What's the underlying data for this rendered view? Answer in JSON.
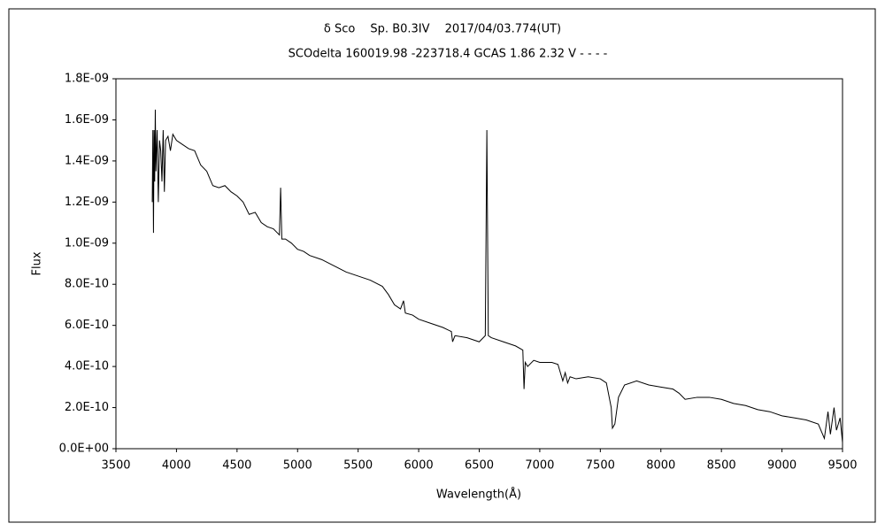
{
  "chart_data": {
    "type": "line",
    "title": "δ Sco　 Sp. B0.3IV　 2017/04/03.774(UT)",
    "subtitle": "SCOdelta 160019.98 -223718.4 GCAS 1.86 2.32 V - - - -",
    "x_label": "Wavelength(Å)",
    "y_label": "Flux",
    "color": "#000000",
    "x": [
      3800,
      3805,
      3810,
      3815,
      3820,
      3825,
      3830,
      3840,
      3850,
      3860,
      3870,
      3880,
      3890,
      3900,
      3910,
      3930,
      3950,
      3970,
      4000,
      4050,
      4100,
      4150,
      4200,
      4250,
      4300,
      4350,
      4400,
      4450,
      4500,
      4550,
      4600,
      4650,
      4700,
      4750,
      4800,
      4850,
      4860,
      4870,
      4900,
      4950,
      5000,
      5050,
      5100,
      5200,
      5300,
      5400,
      5500,
      5600,
      5700,
      5750,
      5800,
      5850,
      5875,
      5890,
      5950,
      6000,
      6100,
      6200,
      6270,
      6280,
      6300,
      6400,
      6500,
      6550,
      6563,
      6575,
      6600,
      6700,
      6800,
      6860,
      6870,
      6880,
      6900,
      6950,
      7000,
      7100,
      7150,
      7190,
      7210,
      7230,
      7250,
      7300,
      7400,
      7500,
      7550,
      7590,
      7600,
      7620,
      7650,
      7700,
      7800,
      7900,
      8000,
      8100,
      8150,
      8200,
      8300,
      8400,
      8500,
      8600,
      8700,
      8800,
      8900,
      9000,
      9100,
      9200,
      9300,
      9350,
      9380,
      9400,
      9430,
      9450,
      9480,
      9500
    ],
    "values": [
      1.2e-09,
      1.55e-09,
      1.05e-09,
      1.55e-09,
      1.3e-09,
      1.65e-09,
      1.35e-09,
      1.55e-09,
      1.2e-09,
      1.5e-09,
      1.45e-09,
      1.3e-09,
      1.55e-09,
      1.25e-09,
      1.5e-09,
      1.52e-09,
      1.45e-09,
      1.53e-09,
      1.5e-09,
      1.48e-09,
      1.46e-09,
      1.45e-09,
      1.38e-09,
      1.35e-09,
      1.28e-09,
      1.27e-09,
      1.28e-09,
      1.25e-09,
      1.23e-09,
      1.2e-09,
      1.14e-09,
      1.15e-09,
      1.1e-09,
      1.08e-09,
      1.07e-09,
      1.04e-09,
      1.27e-09,
      1.02e-09,
      1.02e-09,
      1e-09,
      9.7e-10,
      9.6e-10,
      9.4e-10,
      9.2e-10,
      8.9e-10,
      8.6e-10,
      8.4e-10,
      8.2e-10,
      7.9e-10,
      7.5e-10,
      7e-10,
      6.8e-10,
      7.2e-10,
      6.6e-10,
      6.5e-10,
      6.3e-10,
      6.1e-10,
      5.9e-10,
      5.7e-10,
      5.2e-10,
      5.5e-10,
      5.4e-10,
      5.2e-10,
      5.5e-10,
      1.55e-09,
      5.5e-10,
      5.4e-10,
      5.2e-10,
      5e-10,
      4.8e-10,
      2.9e-10,
      4.2e-10,
      4e-10,
      4.3e-10,
      4.2e-10,
      4.2e-10,
      4.1e-10,
      3.3e-10,
      3.7e-10,
      3.2e-10,
      3.5e-10,
      3.4e-10,
      3.5e-10,
      3.4e-10,
      3.2e-10,
      2e-10,
      1e-10,
      1.2e-10,
      2.5e-10,
      3.1e-10,
      3.3e-10,
      3.1e-10,
      3e-10,
      2.9e-10,
      2.7e-10,
      2.4e-10,
      2.5e-10,
      2.5e-10,
      2.4e-10,
      2.2e-10,
      2.1e-10,
      1.9e-10,
      1.8e-10,
      1.6e-10,
      1.5e-10,
      1.4e-10,
      1.2e-10,
      5e-11,
      1.8e-10,
      7e-11,
      2e-10,
      9e-11,
      1.5e-10,
      3e-11
    ],
    "xlim": [
      3500,
      9500
    ],
    "xticks": [
      3500,
      4000,
      4500,
      5000,
      5500,
      6000,
      6500,
      7000,
      7500,
      8000,
      8500,
      9000,
      9500
    ],
    "ylim": [
      0,
      1.8e-09
    ],
    "yticks": [
      {
        "value": 0,
        "label": "0.0E+00"
      },
      {
        "value": 2e-10,
        "label": "2.0E-10"
      },
      {
        "value": 4e-10,
        "label": "4.0E-10"
      },
      {
        "value": 6e-10,
        "label": "6.0E-10"
      },
      {
        "value": 8e-10,
        "label": "8.0E-10"
      },
      {
        "value": 1e-09,
        "label": "1.0E-09"
      },
      {
        "value": 1.2e-09,
        "label": "1.2E-09"
      },
      {
        "value": 1.4e-09,
        "label": "1.4E-09"
      },
      {
        "value": 1.6e-09,
        "label": "1.6E-09"
      },
      {
        "value": 1.8e-09,
        "label": "1.8E-09"
      }
    ]
  }
}
